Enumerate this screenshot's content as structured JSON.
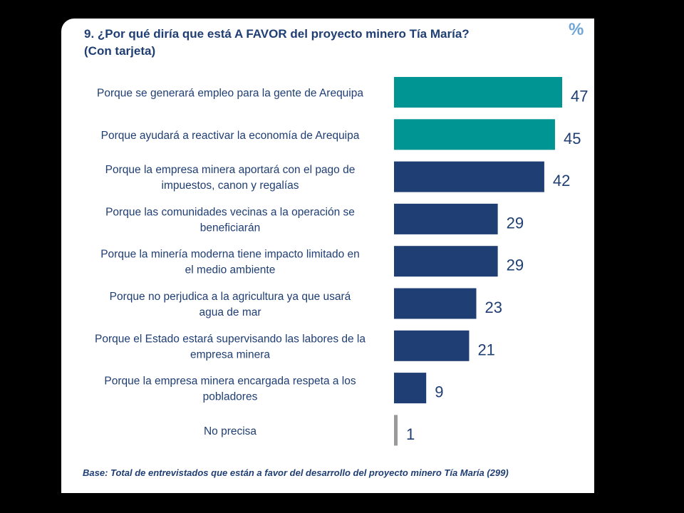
{
  "title": {
    "line1": "9. ¿Por qué diría que está A FAVOR del proyecto minero Tía María?",
    "line2": "(Con tarjeta)"
  },
  "unit_symbol": "%",
  "footnote": "Base: Total de entrevistados que están a favor del desarrollo del proyecto minero Tía María (299)",
  "colors": {
    "teal": "#009593",
    "navy": "#1f3e73",
    "gray": "#9a9a9a",
    "text": "#1f3e73"
  },
  "chart_data": {
    "type": "bar",
    "orientation": "horizontal",
    "title": "9. ¿Por qué diría que está A FAVOR del proyecto minero Tía María? (Con tarjeta)",
    "unit": "%",
    "xlim": [
      0,
      47
    ],
    "grid": false,
    "legend": "none",
    "categories": [
      [
        "Porque se generará empleo para la gente de Arequipa"
      ],
      [
        "Porque ayudará a reactivar la economía de Arequipa"
      ],
      [
        "Porque la empresa minera aportará con el pago de",
        "impuestos, canon y regalías"
      ],
      [
        "Porque las comunidades vecinas a la operación se",
        "beneficiarán"
      ],
      [
        "Porque la minería moderna tiene impacto limitado en",
        "el medio ambiente"
      ],
      [
        "Porque no perjudica a la agricultura  ya que usará",
        "agua de mar"
      ],
      [
        "Porque el Estado estará supervisando las labores de la",
        "empresa minera"
      ],
      [
        "Porque la empresa minera encargada respeta a los",
        "pobladores"
      ],
      [
        "No precisa"
      ]
    ],
    "values": [
      47,
      45,
      42,
      29,
      29,
      23,
      21,
      9,
      1
    ],
    "bar_colors": [
      "#009593",
      "#009593",
      "#1f3e73",
      "#1f3e73",
      "#1f3e73",
      "#1f3e73",
      "#1f3e73",
      "#1f3e73",
      "#9a9a9a"
    ]
  }
}
